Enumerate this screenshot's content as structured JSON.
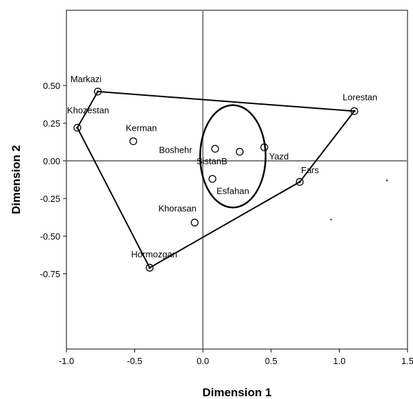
{
  "chart_data": {
    "type": "scatter",
    "title": "",
    "xlabel": "Dimension 1",
    "ylabel": "Dimension 2",
    "xlim": [
      -1.0,
      1.5
    ],
    "ylim": [
      -1.25,
      1.0
    ],
    "x_ticks": [
      -1.0,
      -0.5,
      0.0,
      0.5,
      1.0,
      1.5
    ],
    "x_tick_labels": [
      "-1.0",
      "-0.5",
      "0.0",
      "0.5",
      "1.0",
      "1.5"
    ],
    "y_ticks": [
      0.5,
      0.25,
      0.0,
      -0.25,
      -0.5,
      -0.75
    ],
    "y_tick_labels": [
      "0.50",
      "0.25",
      "0.00",
      "-0.25",
      "-0.50",
      "-0.75"
    ],
    "reference_lines": {
      "x": 0.0,
      "y": 0.0
    },
    "points": [
      {
        "label": "Markazi",
        "x": -0.77,
        "y": 0.46,
        "hull": true
      },
      {
        "label": "Khozestan",
        "x": -0.92,
        "y": 0.22,
        "hull": true
      },
      {
        "label": "Lorestan",
        "x": 1.11,
        "y": 0.33,
        "hull": true
      },
      {
        "label": "Fars",
        "x": 0.71,
        "y": -0.14,
        "hull": true
      },
      {
        "label": "Hormozgan",
        "x": -0.39,
        "y": -0.71,
        "hull": true
      },
      {
        "label": "Kerman",
        "x": -0.51,
        "y": 0.13,
        "hull": false
      },
      {
        "label": "Boshehr",
        "x": 0.09,
        "y": 0.08,
        "hull": false
      },
      {
        "label": "SistanB",
        "x": 0.27,
        "y": 0.06,
        "hull": false
      },
      {
        "label": "Yazd",
        "x": 0.45,
        "y": 0.09,
        "hull": false
      },
      {
        "label": "Esfahan",
        "x": 0.07,
        "y": -0.12,
        "hull": false
      },
      {
        "label": "Khorasan",
        "x": -0.06,
        "y": -0.41,
        "hull": false
      }
    ],
    "hull_order": [
      "Markazi",
      "Lorestan",
      "Fars",
      "Hormozgan",
      "Khozestan"
    ],
    "cluster_ellipse": {
      "cx": 0.22,
      "cy": 0.03,
      "rx": 0.24,
      "ry": 0.34
    },
    "stray_dots": [
      {
        "x": 1.35,
        "y": -0.13
      },
      {
        "x": 0.94,
        "y": -0.39
      }
    ],
    "colors": {
      "axis": "#808080",
      "frame": "#000000",
      "hull": "#000000",
      "background": "#ffffff"
    }
  }
}
